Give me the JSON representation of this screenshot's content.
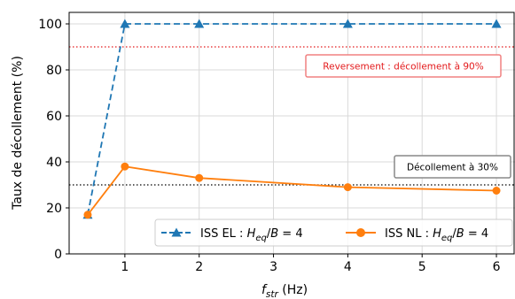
{
  "chart_data": {
    "type": "line",
    "xlabel_main": "f",
    "xlabel_sub": "str",
    "xlabel_unit": " (Hz)",
    "ylabel": "Taux de décollement (%)",
    "xlim": [
      0.25,
      6.25
    ],
    "ylim": [
      0,
      105
    ],
    "xticks": [
      1,
      2,
      3,
      4,
      5,
      6
    ],
    "yticks": [
      0,
      20,
      40,
      60,
      80,
      100
    ],
    "grid": true,
    "legend_placement": "lower-right",
    "x": [
      0.5,
      1,
      2,
      4,
      6
    ],
    "series": [
      {
        "name": "ISS EL : H_eq/B = 4",
        "legend_prefix": "ISS EL : ",
        "values": [
          17,
          100,
          100,
          100,
          100
        ],
        "color": "#1f77b4",
        "linestyle": "dashed",
        "marker": "triangle"
      },
      {
        "name": "ISS NL : H_eq/B = 4",
        "legend_prefix": "ISS NL : ",
        "values": [
          17,
          38,
          33,
          29,
          27.5
        ],
        "color": "#ff7f0e",
        "linestyle": "solid",
        "marker": "circle"
      }
    ],
    "hlines": [
      {
        "y": 90,
        "color": "#e31a1c",
        "linestyle": "dotted"
      },
      {
        "y": 30,
        "color": "#000000",
        "linestyle": "dotted"
      }
    ],
    "annotations": [
      {
        "text": "Reversement : décollement à 90%",
        "color": "#e31a1c",
        "border": "#f08080"
      },
      {
        "text": "Décollement à 30%",
        "color": "#000000",
        "border": "#888888"
      }
    ]
  }
}
